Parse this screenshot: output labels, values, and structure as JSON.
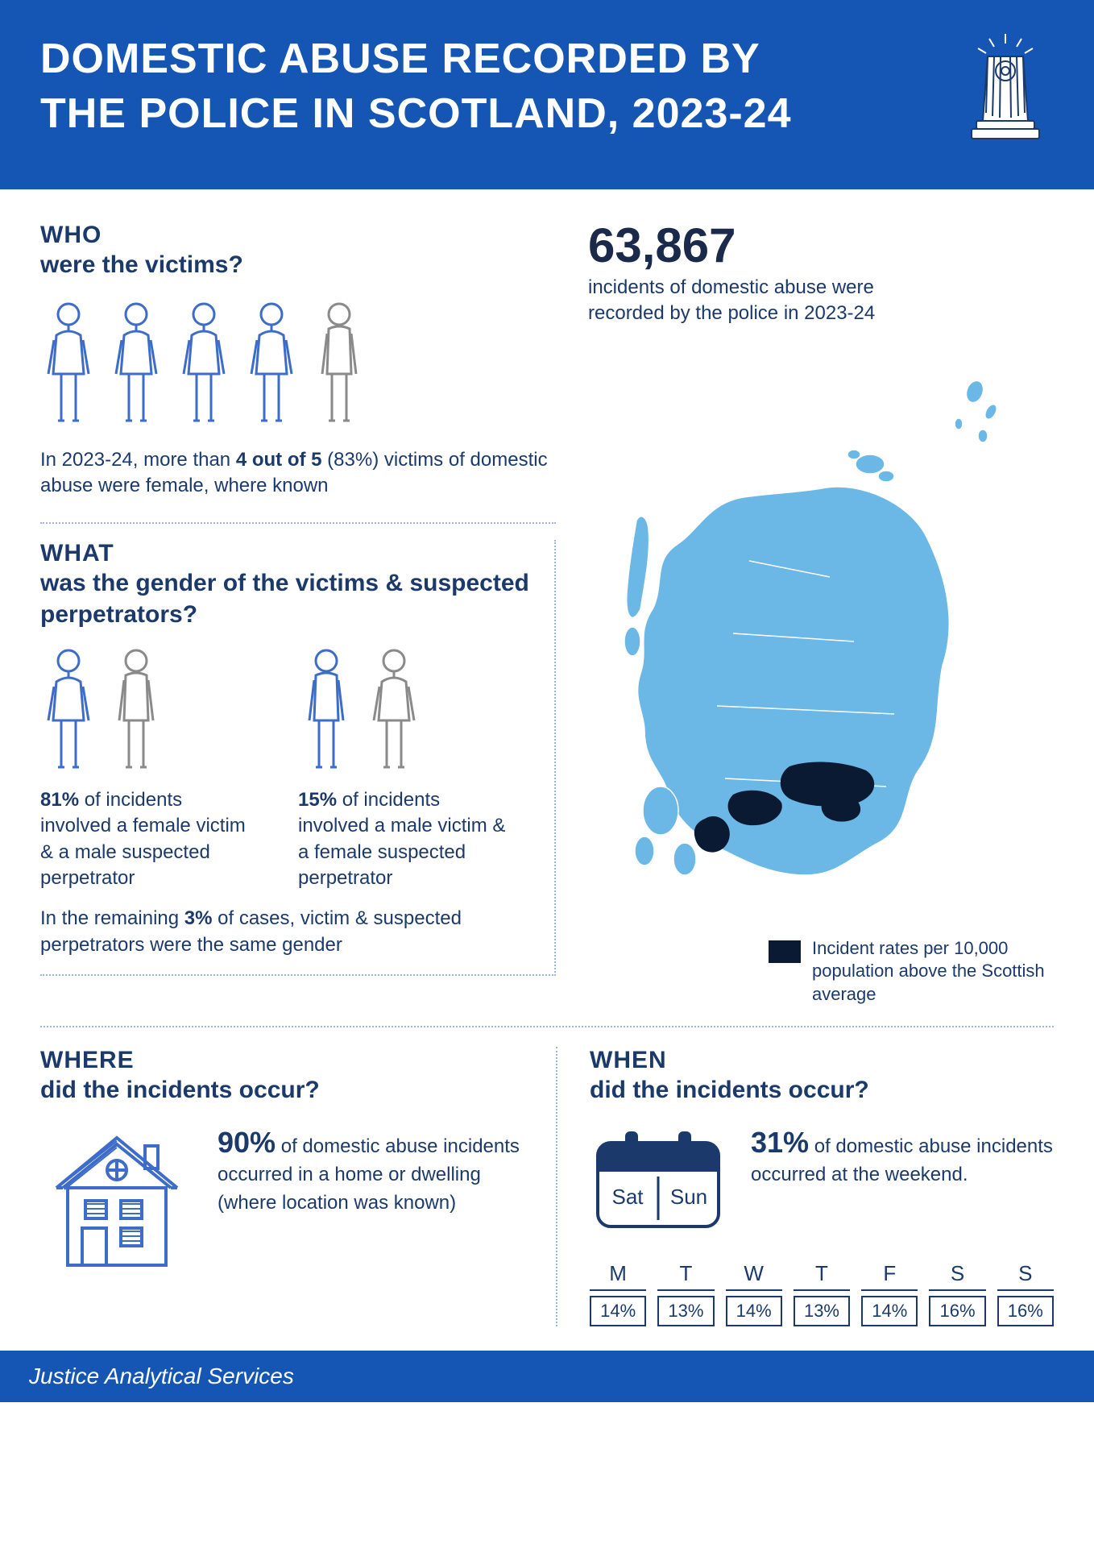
{
  "colors": {
    "brand_blue": "#1556b4",
    "dark_navy": "#1b3a6b",
    "map_light": "#6bb8e6",
    "map_dark": "#0a1a33",
    "dotted": "#9cb6e3",
    "white": "#ffffff"
  },
  "header": {
    "title_line1": "DOMESTIC ABUSE RECORDED BY",
    "title_line2": "THE POLICE IN SCOTLAND, 2023-24"
  },
  "big_stat": {
    "number": "63,867",
    "label": "incidents of domestic abuse were recorded by the police in 2023-24"
  },
  "who": {
    "heading": "WHO",
    "sub": "were the victims?",
    "figures": {
      "count": 5,
      "female": 4,
      "male": 1,
      "female_color": "#3d6cc9",
      "male_color": "#8a8a8a"
    },
    "text_a": "In 2023-24, more than ",
    "text_b": "4 out of 5",
    "text_c": " (83%) victims of domestic abuse were female, where known"
  },
  "what": {
    "heading": "WHAT",
    "sub": "was the gender of the victims & suspected perpetrators?",
    "group1": {
      "figures": [
        {
          "type": "female",
          "color": "#3d6cc9"
        },
        {
          "type": "male",
          "color": "#8a8a8a"
        }
      ],
      "percent": "81%",
      "text": " of incidents involved a female victim & a male suspected perpetrator"
    },
    "group2": {
      "figures": [
        {
          "type": "male",
          "color": "#3d6cc9"
        },
        {
          "type": "female",
          "color": "#8a8a8a"
        }
      ],
      "percent": "15%",
      "text": " of incidents involved a male victim & a female suspected perpetrator"
    },
    "remainder_a": "In the remaining ",
    "remainder_b": "3%",
    "remainder_c": " of cases, victim & suspected perpetrators were the same gender"
  },
  "map": {
    "legend": "Incident rates per 10,000 population above the Scottish average"
  },
  "where": {
    "heading": "WHERE",
    "sub": "did the incidents occur?",
    "percent": "90%",
    "text": " of domestic abuse incidents occurred in a home or dwelling",
    "note": "(where location was known)"
  },
  "when": {
    "heading": "WHEN",
    "sub": "did the incidents occur?",
    "percent": "31%",
    "text": " of domestic abuse incidents occurred at the weekend.",
    "calendar_days": [
      "Sat",
      "Sun"
    ],
    "days": [
      {
        "label": "M",
        "value": "14%"
      },
      {
        "label": "T",
        "value": "13%"
      },
      {
        "label": "W",
        "value": "14%"
      },
      {
        "label": "T",
        "value": "13%"
      },
      {
        "label": "F",
        "value": "14%"
      },
      {
        "label": "S",
        "value": "16%"
      },
      {
        "label": "S",
        "value": "16%"
      }
    ]
  },
  "footer": {
    "text": "Justice Analytical Services"
  }
}
